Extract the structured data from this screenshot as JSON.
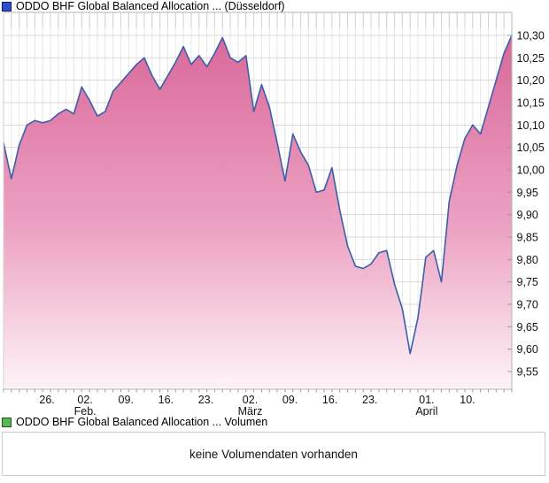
{
  "price_panel": {
    "legend_label": "ODDO BHF Global Balanced Allocation ... (Düsseldorf)"
  },
  "volume_panel": {
    "legend_label": "ODDO BHF Global Balanced Allocation ... Volumen",
    "message": "keine Volumendaten vorhanden"
  },
  "colors": {
    "price_marker_fill": "#2b50d4",
    "price_marker_border": "#0d1a5e",
    "volume_marker_fill": "#58b657",
    "volume_marker_border": "#1e551b",
    "line": "#3a5fa9",
    "area_top": "#d9689a",
    "area_mid": "#eda3c3",
    "area_bottom": "#fdf3f8",
    "grid_vertical": "#e6e6e6",
    "grid_horizontal": "#d8d8d8",
    "grid_comb": "#d2d2d2",
    "axis": "#b3b3b3",
    "tick": "#999999"
  },
  "chart_data": {
    "type": "area",
    "title": "ODDO BHF Global Balanced Allocation ... (Düsseldorf)",
    "xlabel": "",
    "ylabel": "",
    "grid": true,
    "legend_position": "top-left",
    "y_axis": {
      "position": "right",
      "min": 9.55,
      "max": 10.3,
      "tick_step": 0.05,
      "tick_labels": [
        "10,30",
        "10,25",
        "10,20",
        "10,15",
        "10,10",
        "10,05",
        "10,00",
        "9,95",
        "9,90",
        "9,85",
        "9,80",
        "9,75",
        "9,70",
        "9,65",
        "9,60",
        "9,55"
      ]
    },
    "x_axis": {
      "ticks": [
        {
          "day": "26.",
          "month": "",
          "pos": 0.0855
        },
        {
          "day": "02.",
          "month": "Feb.",
          "pos": 0.1605
        },
        {
          "day": "09.",
          "month": "",
          "pos": 0.2408
        },
        {
          "day": "16.",
          "month": "",
          "pos": 0.3194
        },
        {
          "day": "23.",
          "month": "",
          "pos": 0.3979
        },
        {
          "day": "02.",
          "month": "März",
          "pos": 0.4852
        },
        {
          "day": "09.",
          "month": "",
          "pos": 0.5637
        },
        {
          "day": "16.",
          "month": "",
          "pos": 0.6422
        },
        {
          "day": "23.",
          "month": "",
          "pos": 0.7208
        },
        {
          "day": "01.",
          "month": "April",
          "pos": 0.8325
        },
        {
          "day": "10.",
          "month": "",
          "pos": 0.9128
        }
      ]
    },
    "series": [
      {
        "name": "ODDO BHF Global Balanced Allocation ... (Düsseldorf)",
        "values": [
          10.06,
          9.98,
          10.055,
          10.1,
          10.11,
          10.105,
          10.11,
          10.125,
          10.135,
          10.125,
          10.185,
          10.155,
          10.12,
          10.13,
          10.175,
          10.195,
          10.215,
          10.235,
          10.25,
          10.21,
          10.18,
          10.21,
          10.24,
          10.275,
          10.235,
          10.255,
          10.23,
          10.26,
          10.295,
          10.25,
          10.24,
          10.255,
          10.13,
          10.19,
          10.14,
          10.06,
          9.975,
          10.08,
          10.04,
          10.01,
          9.95,
          9.955,
          10.005,
          9.91,
          9.83,
          9.785,
          9.78,
          9.79,
          9.815,
          9.82,
          9.745,
          9.69,
          9.59,
          9.67,
          9.805,
          9.82,
          9.75,
          9.93,
          10.01,
          10.07,
          10.1,
          10.08,
          10.14,
          10.2,
          10.26,
          10.3
        ]
      }
    ]
  }
}
